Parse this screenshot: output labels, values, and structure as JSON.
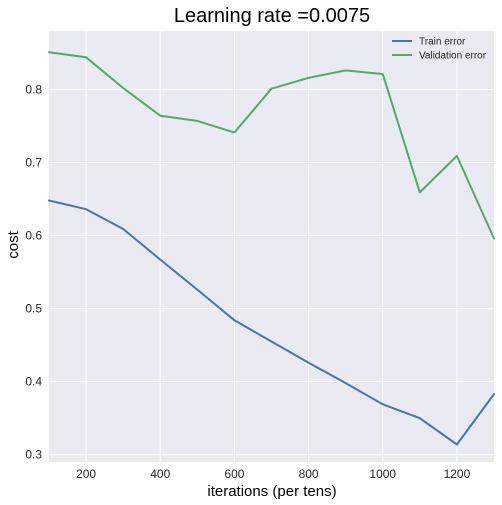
{
  "chart_data": {
    "type": "line",
    "title": "Learning rate =0.0075",
    "xlabel": "iterations (per tens)",
    "ylabel": "cost",
    "xlim": [
      100,
      1300
    ],
    "ylim": [
      0.29,
      0.88
    ],
    "xticks": [
      200,
      400,
      600,
      800,
      1000,
      1200
    ],
    "yticks": [
      0.3,
      0.4,
      0.5,
      0.6,
      0.7,
      0.8
    ],
    "xtick_labels": [
      "200",
      "400",
      "600",
      "800",
      "1000",
      "1200"
    ],
    "ytick_labels": [
      "0.3",
      "0.4",
      "0.5",
      "0.6",
      "0.7",
      "0.8"
    ],
    "grid": true,
    "legend_position": "top-right",
    "x": [
      100,
      200,
      300,
      400,
      500,
      600,
      700,
      800,
      900,
      1000,
      1100,
      1200,
      1300
    ],
    "series": [
      {
        "name": "Train error",
        "color": "#4c72b0",
        "values": [
          0.648,
          0.636,
          0.609,
          0.567,
          0.526,
          0.484,
          0.455,
          0.426,
          0.398,
          0.369,
          0.35,
          0.314,
          0.383
        ]
      },
      {
        "name": "Validation error",
        "color": "#55a868",
        "values": [
          0.851,
          0.844,
          0.802,
          0.764,
          0.757,
          0.741,
          0.801,
          0.816,
          0.826,
          0.821,
          0.659,
          0.709,
          0.596
        ]
      }
    ],
    "colors": {
      "plot_background": "#eaeaf2",
      "grid": "#ffffff"
    }
  }
}
